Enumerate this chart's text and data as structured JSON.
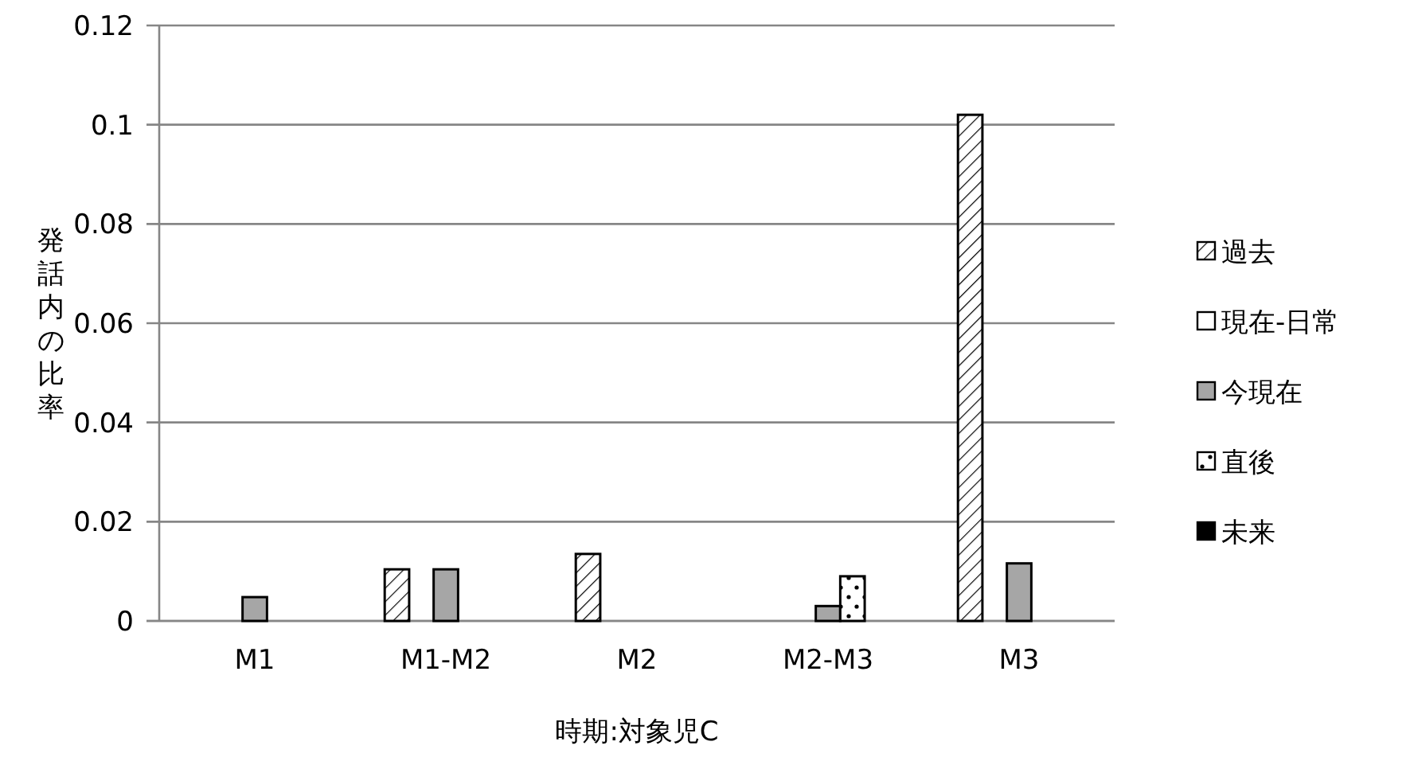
{
  "chart_data": {
    "type": "bar",
    "xlabel": "時期:対象児C",
    "ylabel": "発話内の比率",
    "categories": [
      "M1",
      "M1-M2",
      "M2",
      "M2-M3",
      "M3"
    ],
    "series": [
      {
        "name": "過去",
        "color": "#000000",
        "values": [
          0,
          0.0104,
          0.0135,
          0,
          0.102
        ]
      },
      {
        "name": "現在-日常",
        "color": "#ffffff",
        "values": [
          0,
          0,
          0,
          0,
          0
        ]
      },
      {
        "name": "今現在",
        "color": "#a6a6a6",
        "values": [
          0.0048,
          0.0104,
          0,
          0.003,
          0.0116
        ]
      },
      {
        "name": "直後",
        "color": "#000000",
        "values": [
          0,
          0,
          0,
          0.009,
          0
        ]
      },
      {
        "name": "未来",
        "color": "#000000",
        "values": [
          0,
          0,
          0,
          0,
          0
        ]
      }
    ],
    "ylim": [
      0,
      0.12
    ],
    "yticks": [
      0,
      0.02,
      0.04,
      0.06,
      0.08,
      0.1,
      0.12
    ],
    "grid": "y",
    "legend": "right"
  }
}
